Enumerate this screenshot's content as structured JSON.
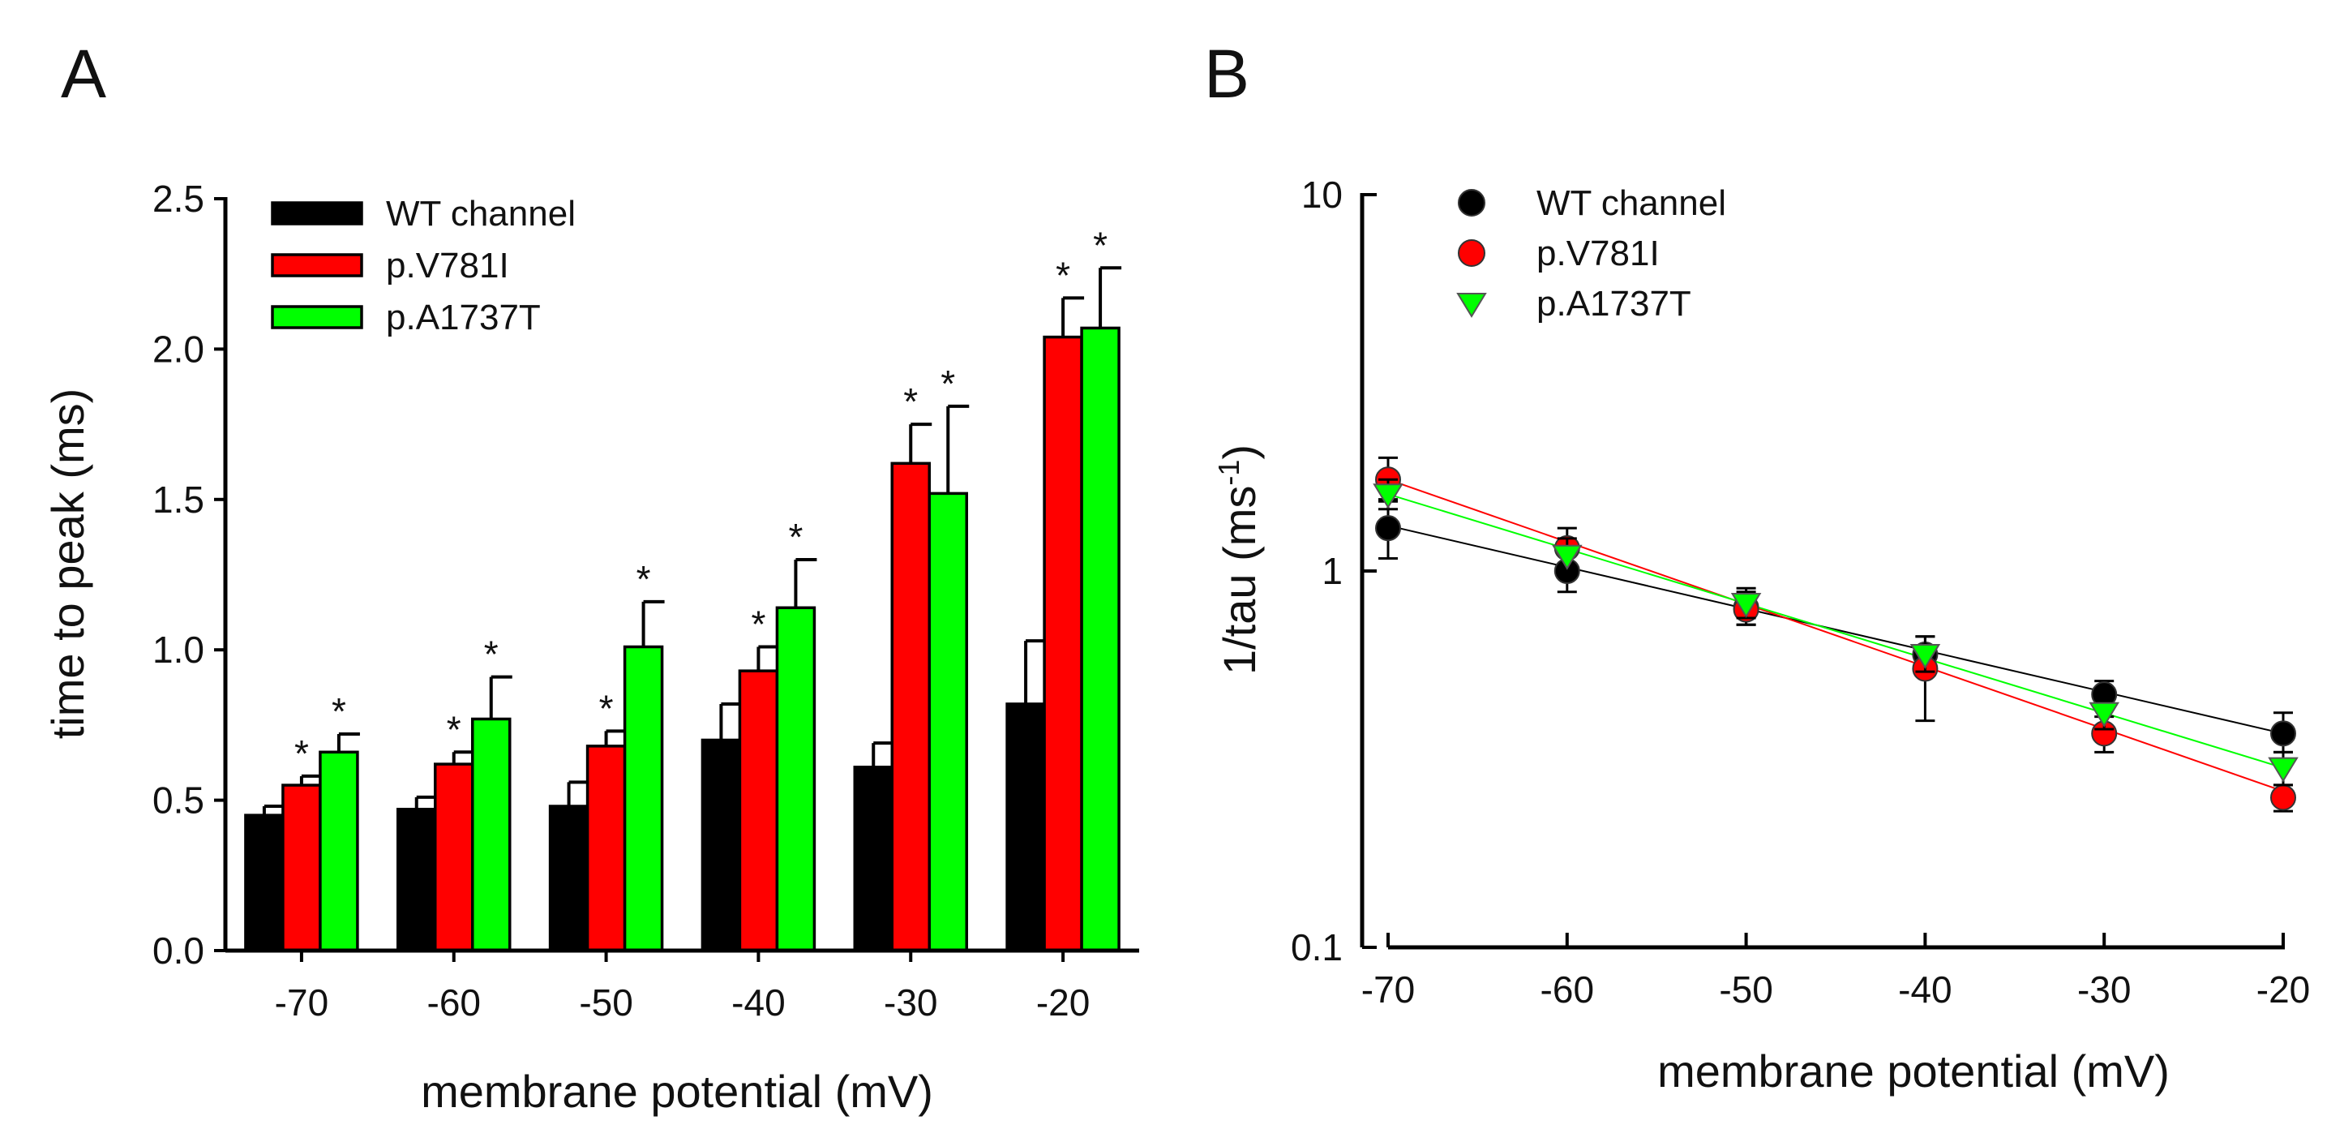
{
  "colors": {
    "wt": "#000000",
    "v781i": "#ff0000",
    "a1737t": "#00ff00",
    "axis": "#000000"
  },
  "chart_data": [
    {
      "panel": "A",
      "type": "bar",
      "title": "",
      "xlabel": "membrane potential (mV)",
      "ylabel": "time to peak (ms)",
      "ylim": [
        0,
        2.5
      ],
      "yticks": [
        "0.0",
        "0.5",
        "1.0",
        "1.5",
        "2.0",
        "2.5"
      ],
      "categories": [
        "-70",
        "-60",
        "-50",
        "-40",
        "-30",
        "-20"
      ],
      "legend_position": "top-left",
      "series": [
        {
          "name": "WT channel",
          "color": "#000000",
          "values": [
            0.45,
            0.47,
            0.48,
            0.7,
            0.61,
            0.82
          ],
          "errors": [
            0.03,
            0.04,
            0.08,
            0.12,
            0.08,
            0.21
          ],
          "significant": [
            false,
            false,
            false,
            false,
            false,
            false
          ]
        },
        {
          "name": "p.V781I",
          "color": "#ff0000",
          "values": [
            0.55,
            0.62,
            0.68,
            0.93,
            1.62,
            2.04
          ],
          "errors": [
            0.03,
            0.04,
            0.05,
            0.08,
            0.13,
            0.13
          ],
          "significant": [
            true,
            true,
            true,
            true,
            true,
            true
          ]
        },
        {
          "name": "p.A1737T",
          "color": "#00ff00",
          "values": [
            0.66,
            0.77,
            1.01,
            1.14,
            1.52,
            2.07
          ],
          "errors": [
            0.06,
            0.14,
            0.15,
            0.16,
            0.29,
            0.2
          ],
          "significant": [
            true,
            true,
            true,
            true,
            true,
            true
          ]
        }
      ],
      "significance_marker": "*"
    },
    {
      "panel": "B",
      "type": "scatter",
      "title": "",
      "xlabel": "membrane potential (mV)",
      "ylabel_main": "1/tau (ms",
      "ylabel_sup": "-1",
      "ylabel_close": ")",
      "yscale": "log",
      "ylim": [
        0.1,
        10
      ],
      "yticks": [
        "0.1",
        "1",
        "10"
      ],
      "xlim": [
        -70,
        -20
      ],
      "x": [
        -70,
        -60,
        -50,
        -40,
        -30,
        -20
      ],
      "xticks": [
        "-70",
        "-60",
        "-50",
        "-40",
        "-30",
        "-20"
      ],
      "legend_position": "top-left",
      "series": [
        {
          "name": "WT channel",
          "color": "#000000",
          "marker": "circle",
          "values": [
            1.3,
            1.0,
            0.8,
            0.6,
            0.47,
            0.37
          ],
          "err_up": [
            0.25,
            0.12,
            0.08,
            0.07,
            0.04,
            0.05
          ],
          "err_down": [
            0.22,
            0.12,
            0.08,
            0.06,
            0.04,
            0.04
          ],
          "fit": [
            1.32,
            0.37
          ]
        },
        {
          "name": "p.V781I",
          "color": "#ff0000",
          "marker": "circle",
          "values": [
            1.75,
            1.15,
            0.79,
            0.55,
            0.37,
            0.25
          ],
          "err_up": [
            0.25,
            0.15,
            0.08,
            0.08,
            0.04,
            0.02
          ],
          "err_down": [
            0.22,
            0.14,
            0.07,
            0.15,
            0.04,
            0.02
          ],
          "fit": [
            1.75,
            0.26
          ]
        },
        {
          "name": "p.A1737T",
          "color": "#00ff00",
          "marker": "triangle-down",
          "values": [
            1.6,
            1.1,
            0.82,
            0.6,
            0.42,
            0.3
          ],
          "err_up": [
            0.15,
            0.12,
            0.08,
            0.07,
            0.04,
            0.03
          ],
          "err_down": [
            0.14,
            0.11,
            0.07,
            0.06,
            0.04,
            0.03
          ],
          "fit": [
            1.6,
            0.3
          ]
        }
      ]
    }
  ]
}
